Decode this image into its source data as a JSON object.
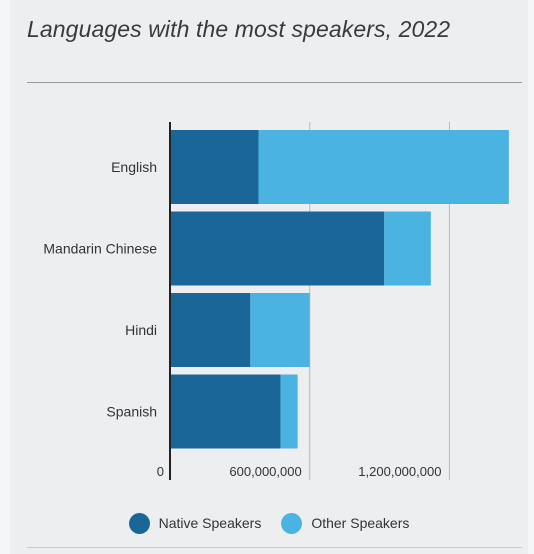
{
  "chart_data": {
    "type": "bar",
    "orientation": "horizontal",
    "stacked": true,
    "title": "Languages with the most speakers, 2022",
    "categories": [
      "English",
      "Mandarin Chinese",
      "Hindi",
      "Spanish"
    ],
    "series": [
      {
        "name": "Native Speakers",
        "color": "#1b6698",
        "values": [
          380000000,
          920000000,
          345000000,
          475000000
        ]
      },
      {
        "name": "Other Speakers",
        "color": "#4ab3e2",
        "values": [
          1075000000,
          200000000,
          255000000,
          73000000
        ]
      }
    ],
    "xlim": [
      0,
      1460000000
    ],
    "xticks": [
      0,
      600000000,
      1200000000
    ],
    "xtick_labels": [
      "0",
      "600,000,000",
      "1,200,000,000"
    ],
    "grid": true,
    "legend_position": "bottom"
  }
}
